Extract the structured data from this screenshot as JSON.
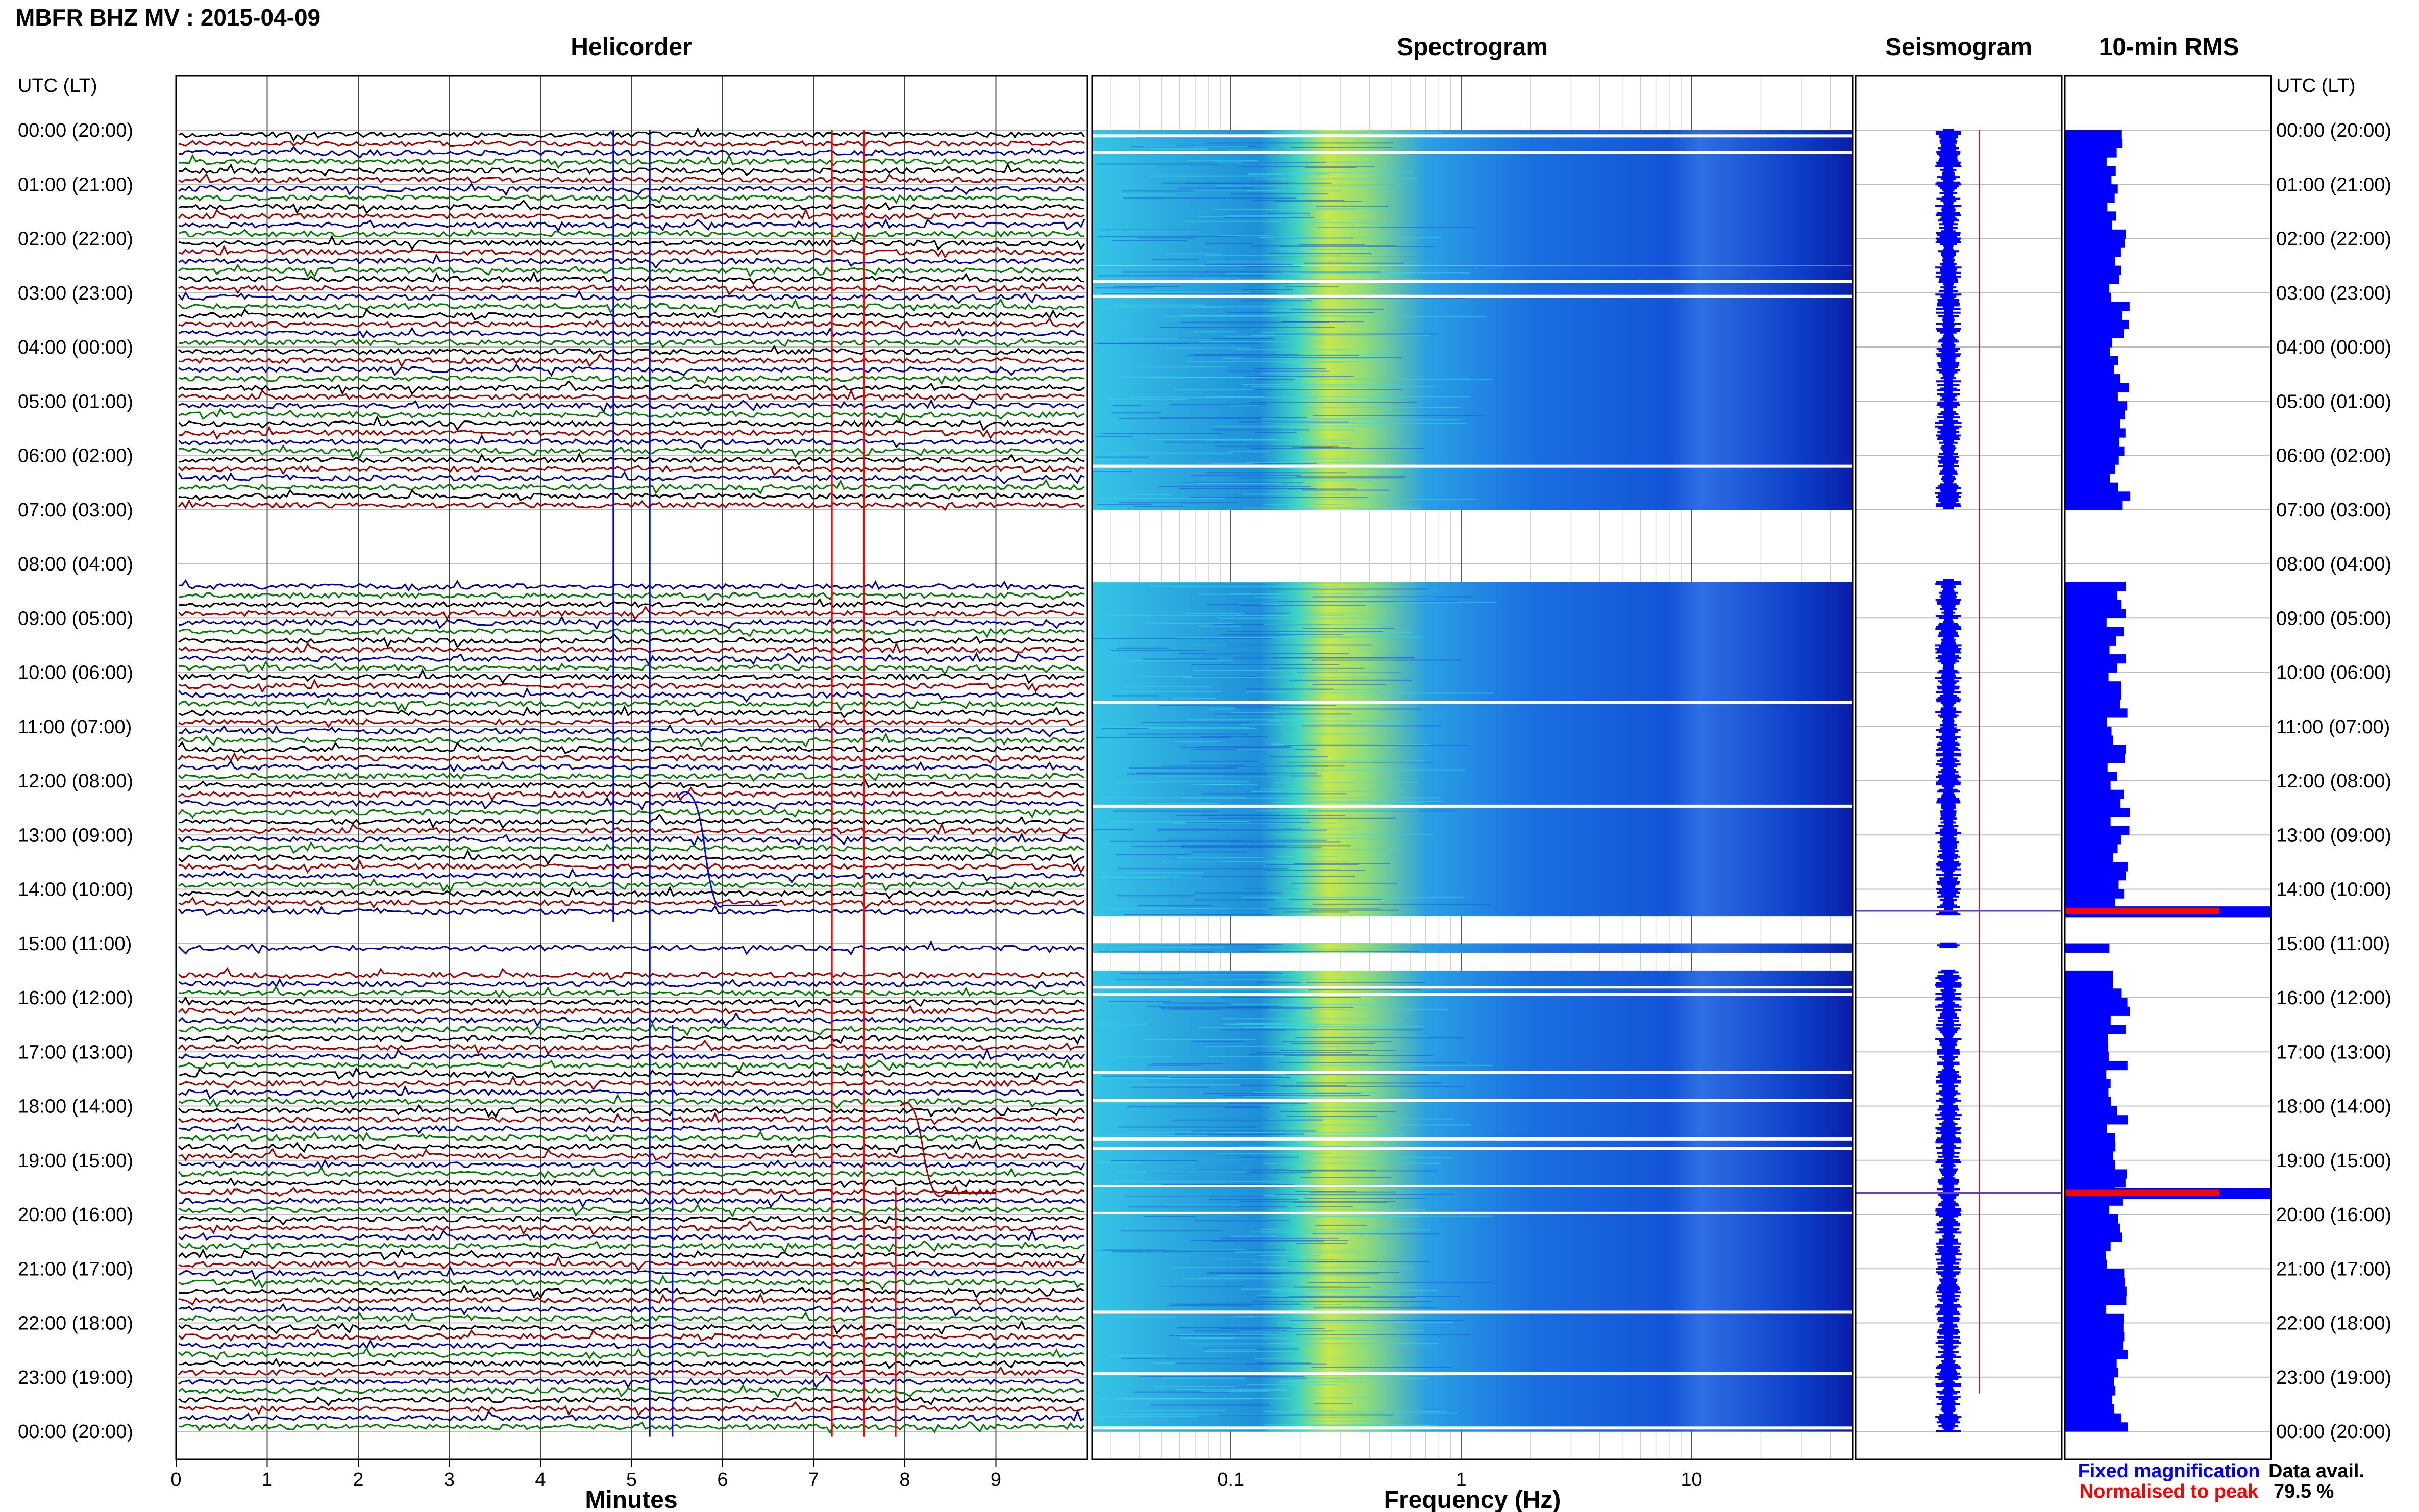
{
  "header": {
    "title": "MBFR BHZ MV : 2015-04-09"
  },
  "panels": {
    "helicorder": "Helicorder",
    "spectrogram": "Spectrogram",
    "seismogram": "Seismogram",
    "rms": "10-min RMS"
  },
  "time_axis": {
    "label_left": "UTC (LT)",
    "label_right": "UTC (LT)",
    "labels": [
      "00:00 (20:00)",
      "01:00 (21:00)",
      "02:00 (22:00)",
      "03:00 (23:00)",
      "04:00 (00:00)",
      "05:00 (01:00)",
      "06:00 (02:00)",
      "07:00 (03:00)",
      "08:00 (04:00)",
      "09:00 (05:00)",
      "10:00 (06:00)",
      "11:00 (07:00)",
      "12:00 (08:00)",
      "13:00 (09:00)",
      "14:00 (10:00)",
      "15:00 (11:00)",
      "16:00 (12:00)",
      "17:00 (13:00)",
      "18:00 (14:00)",
      "19:00 (15:00)",
      "20:00 (16:00)",
      "21:00 (17:00)",
      "22:00 (18:00)",
      "23:00 (19:00)",
      "00:00 (20:00)"
    ]
  },
  "colors": {
    "trace": [
      "#000000",
      "#a00000",
      "#0000a0",
      "#007a00"
    ],
    "fixed": "#0000ff",
    "normalised": "#ff0000",
    "rms_bar": "#0000ff"
  },
  "legend": {
    "fixed": "Fixed magnification",
    "normalised": "Normalised to peak",
    "avail_label": "Data avail.",
    "avail_value": "79.5 %"
  },
  "chart_data": [
    {
      "type": "line",
      "title": "Helicorder",
      "xlabel": "Minutes",
      "ylabel": "UTC (LT)",
      "xlim": [
        0,
        10
      ],
      "x_ticks": [
        "0",
        "1",
        "2",
        "3",
        "4",
        "5",
        "6",
        "7",
        "8",
        "9"
      ],
      "y_range_hours": [
        0,
        24
      ],
      "line_interval_minutes": 10,
      "data_gaps_utc": [
        [
          7.0,
          8.3
        ],
        [
          14.5,
          15.0
        ],
        [
          15.1,
          15.5
        ]
      ],
      "grid": true
    },
    {
      "type": "heatmap",
      "title": "Spectrogram",
      "xlabel": "Frequency (Hz)",
      "x_scale": "log",
      "xlim": [
        0.025,
        50
      ],
      "x_ticks": [
        "0.1",
        "1",
        "10"
      ],
      "y_range_hours": [
        0,
        24
      ],
      "grid": true
    },
    {
      "type": "line",
      "title": "Seismogram",
      "y_range_hours": [
        0,
        24
      ]
    },
    {
      "type": "bar",
      "title": "10-min RMS",
      "y_range_hours": [
        0,
        24
      ],
      "fixed_magnification_peaks_utc": [
        14.4,
        19.6
      ],
      "normalised_peaks_utc": [
        14.4,
        19.6
      ]
    }
  ]
}
